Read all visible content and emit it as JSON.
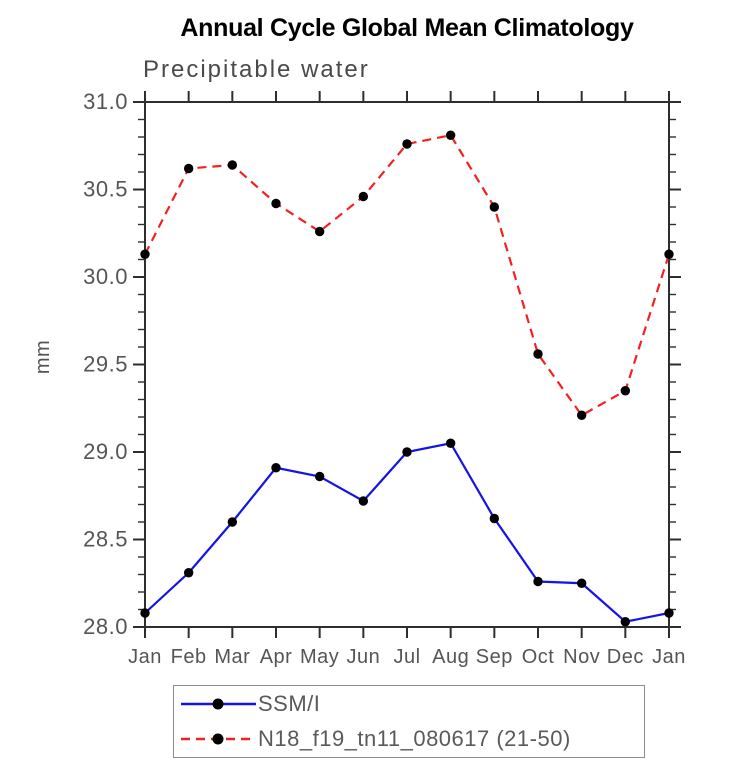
{
  "header": {
    "title": "Annual Cycle Global Mean Climatology",
    "subtitle": "Precipitable water"
  },
  "chart_data": {
    "type": "line",
    "title": "Annual Cycle Global Mean Climatology",
    "subtitle": "Precipitable water",
    "xlabel": "",
    "ylabel": "mm",
    "categories": [
      "Jan",
      "Feb",
      "Mar",
      "Apr",
      "May",
      "Jun",
      "Jul",
      "Aug",
      "Sep",
      "Oct",
      "Nov",
      "Dec",
      "Jan"
    ],
    "ylim": [
      28.0,
      31.0
    ],
    "ytick_step": 0.5,
    "yminor_step": 0.1,
    "grid": false,
    "legend_position": "bottom",
    "frame_color": "#2e2e2e",
    "tick_label_color": "#555555",
    "series": [
      {
        "name": "SSM/I",
        "color": "#1414e6",
        "line_style": "solid",
        "marker": "circle",
        "marker_color": "#000000",
        "values": [
          28.08,
          28.31,
          28.6,
          28.91,
          28.86,
          28.72,
          29.0,
          29.05,
          28.62,
          28.26,
          28.25,
          28.03,
          28.08
        ]
      },
      {
        "name": "N18_f19_tn11_080617 (21-50)",
        "color": "#f52020",
        "line_style": "dashed",
        "marker": "circle",
        "marker_color": "#000000",
        "values": [
          30.13,
          30.62,
          30.64,
          30.42,
          30.26,
          30.46,
          30.76,
          30.81,
          30.4,
          29.56,
          29.21,
          29.35,
          30.13
        ]
      }
    ]
  }
}
